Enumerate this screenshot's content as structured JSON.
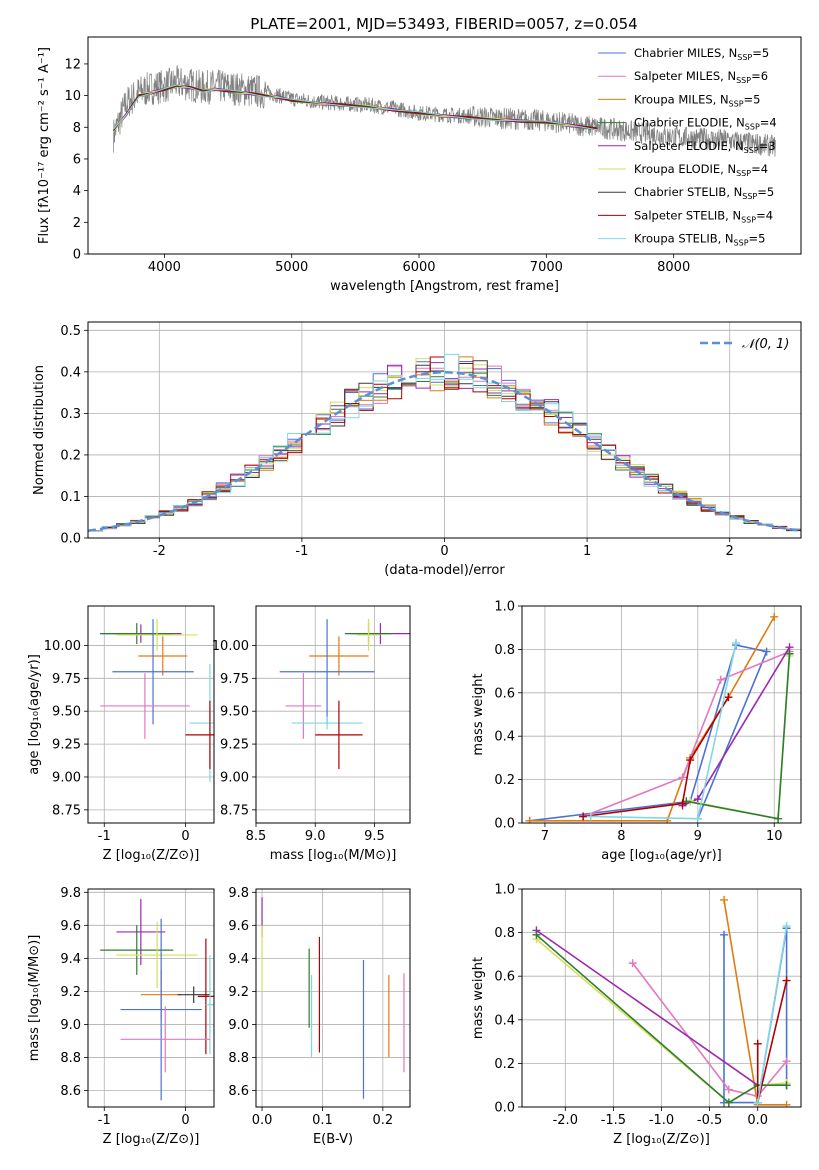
{
  "figure_title": "PLATE=2001, MJD=53493, FIBERID=0057, z=0.054",
  "legend_fit": [
    {
      "label": "Chabrier MILES, N",
      "sub": "SSP",
      "suffix": "=5",
      "color": "#4c72d6"
    },
    {
      "label": "Salpeter MILES, N",
      "sub": "SSP",
      "suffix": "=6",
      "color": "#e377c2"
    },
    {
      "label": "Kroupa MILES, N",
      "sub": "SSP",
      "suffix": "=5",
      "color": "#e07b10"
    },
    {
      "label": "Chabrier ELODIE, N",
      "sub": "SSP",
      "suffix": "=4",
      "color": "#2e7d32"
    },
    {
      "label": "Salpeter ELODIE, N",
      "sub": "SSP",
      "suffix": "=3",
      "color": "#9c27b0"
    },
    {
      "label": "Kroupa ELODIE, N",
      "sub": "SSP",
      "suffix": "=4",
      "color": "#d4e157"
    },
    {
      "label": "Chabrier STELIB, N",
      "sub": "SSP",
      "suffix": "=5",
      "color": "#3a3a3a"
    },
    {
      "label": "Salpeter STELIB, N",
      "sub": "SSP",
      "suffix": "=4",
      "color": "#b00000"
    },
    {
      "label": "Kroupa STELIB, N",
      "sub": "SSP",
      "suffix": "=5",
      "color": "#7fd8e6"
    }
  ],
  "chart_data": [
    {
      "id": "spectrum",
      "type": "line",
      "xlabel": "wavelength [Angstrom, rest frame]",
      "ylabel": "Flux [fλ10⁻¹⁷ erg cm⁻² s⁻¹ A⁻¹]",
      "xlim": [
        3400,
        9000
      ],
      "ylim": [
        0,
        13.7
      ],
      "xticks": [
        4000,
        5000,
        6000,
        7000,
        8000
      ],
      "yticks": [
        0,
        2,
        4,
        6,
        8,
        10,
        12
      ],
      "data_series": {
        "name": "data",
        "color": "#808080",
        "x": [
          3600,
          3700,
          3800,
          3900,
          4000,
          4100,
          4200,
          4300,
          4400,
          4500,
          4600,
          4700,
          4800,
          4900,
          5000,
          5200,
          5400,
          5600,
          5800,
          6000,
          6200,
          6400,
          6600,
          6800,
          7000,
          7200,
          7400,
          7600,
          7800,
          8000,
          8200,
          8400,
          8600,
          8800
        ],
        "y": [
          7.5,
          9.5,
          10.2,
          10.5,
          10.6,
          10.8,
          10.7,
          10.5,
          10.6,
          10.5,
          10.4,
          10.3,
          10.2,
          10.0,
          9.8,
          9.6,
          9.5,
          9.4,
          9.2,
          8.9,
          8.8,
          8.7,
          8.6,
          8.5,
          8.4,
          8.2,
          8.0,
          7.8,
          7.6,
          7.4,
          7.3,
          7.2,
          7.0,
          6.8
        ]
      },
      "model": {
        "x": [
          3600,
          3700,
          3800,
          3900,
          4000,
          4100,
          4200,
          4300,
          4400,
          4500,
          4600,
          4700,
          4800,
          4900,
          5000,
          5200,
          5400,
          5600,
          5800,
          6000,
          6200,
          6400,
          6600,
          6800,
          7000,
          7200,
          7400
        ],
        "y": [
          7.8,
          8.8,
          10.0,
          10.2,
          10.4,
          10.6,
          10.5,
          10.3,
          10.4,
          10.3,
          10.2,
          10.1,
          10.0,
          9.9,
          9.7,
          9.5,
          9.4,
          9.3,
          9.1,
          8.9,
          8.7,
          8.6,
          8.5,
          8.4,
          8.3,
          8.1,
          7.9
        ]
      }
    },
    {
      "id": "residuals",
      "type": "line",
      "xlabel": "(data-model)/error",
      "ylabel": "Normed distribution",
      "legend": "𝒩(0, 1)",
      "xlim": [
        -2.5,
        2.5
      ],
      "ylim": [
        0,
        0.52
      ],
      "xticks": [
        -2,
        -1,
        0,
        1,
        2
      ],
      "yticks": [
        0.0,
        0.1,
        0.2,
        0.3,
        0.4,
        0.5
      ],
      "gaussian": {
        "mu": 0,
        "sigma": 1,
        "color": "#5b8fd6"
      }
    },
    {
      "id": "age_vs_z",
      "type": "scatter",
      "xlabel": "Z [log₁₀(Z/Z⊙)]",
      "ylabel": "age  [log₁₀(age/yr)]",
      "xlim": [
        -1.2,
        0.35
      ],
      "ylim": [
        8.65,
        10.3
      ],
      "xticks": [
        -1,
        0
      ],
      "yticks": [
        8.75,
        9.0,
        9.25,
        9.5,
        9.75,
        10.0
      ],
      "points": [
        {
          "x": -0.55,
          "y": 10.09,
          "xerr": 0.5,
          "yerr": 0.07,
          "color": "#9c27b0"
        },
        {
          "x": -0.6,
          "y": 10.09,
          "xerr": 0.45,
          "yerr": 0.08,
          "color": "#2e7d32"
        },
        {
          "x": -0.35,
          "y": 10.08,
          "xerr": 0.5,
          "yerr": 0.12,
          "color": "#d4e157"
        },
        {
          "x": -0.28,
          "y": 9.92,
          "xerr": 0.3,
          "yerr": 0.15,
          "color": "#e07b10"
        },
        {
          "x": -0.4,
          "y": 9.8,
          "xerr": 0.5,
          "yerr": 0.4,
          "color": "#4c72d6"
        },
        {
          "x": -0.5,
          "y": 9.54,
          "xerr": 0.55,
          "yerr": 0.25,
          "color": "#e377c2"
        },
        {
          "x": 0.3,
          "y": 9.41,
          "xerr": 0.25,
          "yerr": 0.45,
          "color": "#7fd8e6"
        },
        {
          "x": 0.3,
          "y": 9.32,
          "xerr": 0.3,
          "yerr": 0.26,
          "color": "#b00000"
        }
      ]
    },
    {
      "id": "age_vs_mass",
      "type": "scatter",
      "xlabel": "mass [log₁₀(M/M⊙)]",
      "ylabel": "",
      "xlim": [
        8.5,
        9.8
      ],
      "ylim": [
        8.65,
        10.3
      ],
      "xticks": [
        8.5,
        9.0,
        9.5
      ],
      "yticks": [
        8.75,
        9.0,
        9.25,
        9.5,
        9.75,
        10.0
      ],
      "points": [
        {
          "x": 9.55,
          "y": 10.09,
          "xerr": 0.25,
          "yerr": 0.08,
          "color": "#9c27b0"
        },
        {
          "x": 9.45,
          "y": 10.09,
          "xerr": 0.2,
          "yerr": 0.08,
          "color": "#2e7d32"
        },
        {
          "x": 9.45,
          "y": 10.08,
          "xerr": 0.1,
          "yerr": 0.12,
          "color": "#d4e157"
        },
        {
          "x": 9.2,
          "y": 9.92,
          "xerr": 0.25,
          "yerr": 0.15,
          "color": "#e07b10"
        },
        {
          "x": 9.1,
          "y": 9.8,
          "xerr": 0.4,
          "yerr": 0.4,
          "color": "#4c72d6"
        },
        {
          "x": 8.9,
          "y": 9.54,
          "xerr": 0.15,
          "yerr": 0.25,
          "color": "#e377c2"
        },
        {
          "x": 9.1,
          "y": 9.41,
          "xerr": 0.3,
          "yerr": 0.05,
          "color": "#7fd8e6"
        },
        {
          "x": 9.2,
          "y": 9.32,
          "xerr": 0.2,
          "yerr": 0.26,
          "color": "#b00000"
        }
      ]
    },
    {
      "id": "mw_vs_age",
      "type": "line",
      "xlabel": "age  [log₁₀(age/yr)]",
      "ylabel": "mass weight",
      "xlim": [
        6.7,
        10.35
      ],
      "ylim": [
        0,
        1.0
      ],
      "xticks": [
        7,
        8,
        9,
        10
      ],
      "yticks": [
        0.0,
        0.2,
        0.4,
        0.6,
        0.8,
        1.0
      ],
      "series": [
        {
          "color": "#4c72d6",
          "x": [
            6.8,
            8.9,
            9.5,
            9.9,
            9.0
          ],
          "y": [
            0.01,
            0.1,
            0.82,
            0.79,
            0.02
          ]
        },
        {
          "color": "#e07b10",
          "x": [
            6.8,
            8.6,
            8.9,
            9.4,
            10.0
          ],
          "y": [
            0.01,
            0.01,
            0.3,
            0.58,
            0.95
          ]
        },
        {
          "color": "#e377c2",
          "x": [
            7.5,
            8.8,
            9.3,
            10.2
          ],
          "y": [
            0.03,
            0.21,
            0.66,
            0.79
          ]
        },
        {
          "color": "#9c27b0",
          "x": [
            8.8,
            9.0,
            10.2
          ],
          "y": [
            0.08,
            0.11,
            0.81
          ]
        },
        {
          "color": "#d4e157",
          "x": [
            8.9,
            10.05,
            10.2
          ],
          "y": [
            0.1,
            0.02,
            0.77
          ]
        },
        {
          "color": "#2e7d32",
          "x": [
            8.85,
            10.05,
            10.2
          ],
          "y": [
            0.1,
            0.02,
            0.78
          ]
        },
        {
          "color": "#b00000",
          "x": [
            7.5,
            8.8,
            8.9,
            9.4
          ],
          "y": [
            0.03,
            0.09,
            0.29,
            0.58
          ]
        },
        {
          "color": "#7fd8e6",
          "x": [
            7.6,
            9.0,
            9.5
          ],
          "y": [
            0.03,
            0.02,
            0.83
          ]
        }
      ]
    },
    {
      "id": "mass_vs_z",
      "type": "scatter",
      "xlabel": "Z [log₁₀(Z/Z⊙)]",
      "ylabel": "mass [log₁₀(M/M⊙)]",
      "xlim": [
        -1.2,
        0.35
      ],
      "ylim": [
        8.5,
        9.82
      ],
      "xticks": [
        -1,
        0
      ],
      "yticks": [
        8.6,
        8.8,
        9.0,
        9.2,
        9.4,
        9.6,
        9.8
      ],
      "points": [
        {
          "x": -0.55,
          "y": 9.56,
          "xerr": 0.3,
          "yerr": 0.2,
          "color": "#9c27b0"
        },
        {
          "x": -0.6,
          "y": 9.45,
          "xerr": 0.45,
          "yerr": 0.15,
          "color": "#2e7d32"
        },
        {
          "x": -0.35,
          "y": 9.42,
          "xerr": 0.5,
          "yerr": 0.2,
          "color": "#d4e157"
        },
        {
          "x": -0.3,
          "y": 9.18,
          "xerr": 0.25,
          "yerr": 0.15,
          "color": "#e07b10"
        },
        {
          "x": 0.1,
          "y": 9.18,
          "xerr": 0.2,
          "yerr": 0.05,
          "color": "#3a3a3a"
        },
        {
          "x": 0.25,
          "y": 9.17,
          "xerr": 0.1,
          "yerr": 0.35,
          "color": "#b00000"
        },
        {
          "x": 0.3,
          "y": 9.12,
          "xerr": 0.05,
          "yerr": 0.3,
          "color": "#7fd8e6"
        },
        {
          "x": -0.3,
          "y": 9.09,
          "xerr": 0.5,
          "yerr": 0.55,
          "color": "#4c72d6"
        },
        {
          "x": -0.25,
          "y": 8.91,
          "xerr": 0.55,
          "yerr": 0.2,
          "color": "#e377c2"
        }
      ]
    },
    {
      "id": "mass_vs_ebv",
      "type": "scatter",
      "xlabel": "E(B-V)",
      "ylabel": "",
      "xlim": [
        -0.01,
        0.245
      ],
      "ylim": [
        8.5,
        9.82
      ],
      "xticks": [
        0.0,
        0.1,
        0.2
      ],
      "yticks": [
        8.6,
        8.8,
        9.0,
        9.2,
        9.4,
        9.6,
        9.8
      ],
      "points": [
        {
          "x": 0.0,
          "y": 9.65,
          "yerr": 0.12,
          "color": "#9c27b0"
        },
        {
          "x": 0.0,
          "y": 9.4,
          "yerr": 0.2,
          "color": "#d4e157"
        },
        {
          "x": 0.078,
          "y": 9.22,
          "yerr": 0.24,
          "color": "#2e7d32"
        },
        {
          "x": 0.082,
          "y": 9.05,
          "yerr": 0.25,
          "color": "#7fd8e6"
        },
        {
          "x": 0.095,
          "y": 9.18,
          "yerr": 0.35,
          "color": "#b00000"
        },
        {
          "x": 0.168,
          "y": 8.97,
          "yerr": 0.42,
          "color": "#4c72d6"
        },
        {
          "x": 0.21,
          "y": 9.05,
          "yerr": 0.25,
          "color": "#e07b10"
        },
        {
          "x": 0.235,
          "y": 9.01,
          "yerr": 0.3,
          "color": "#e377c2"
        }
      ]
    },
    {
      "id": "mw_vs_z",
      "type": "line",
      "xlabel": "Z [log₁₀(Z/Z⊙)]",
      "ylabel": "mass weight",
      "xlim": [
        -2.45,
        0.45
      ],
      "ylim": [
        0,
        1.0
      ],
      "xticks": [
        -2.0,
        -1.5,
        -1.0,
        -0.5,
        0.0
      ],
      "yticks": [
        0.0,
        0.2,
        0.4,
        0.6,
        0.8,
        1.0
      ],
      "series": [
        {
          "color": "#4c72d6",
          "x": [
            -0.35,
            -0.35,
            0.0,
            0.3,
            0.3
          ],
          "y": [
            0.79,
            0.02,
            0.02,
            0.82,
            0.1
          ]
        },
        {
          "color": "#e07b10",
          "x": [
            -0.35,
            0.0,
            0.3
          ],
          "y": [
            0.95,
            0.01,
            0.01
          ]
        },
        {
          "color": "#e377c2",
          "x": [
            -1.3,
            -0.3,
            0.0,
            0.3
          ],
          "y": [
            0.66,
            0.08,
            0.05,
            0.21
          ]
        },
        {
          "color": "#9c27b0",
          "x": [
            -2.3,
            0.0,
            0.3
          ],
          "y": [
            0.81,
            0.1,
            0.1
          ]
        },
        {
          "color": "#d4e157",
          "x": [
            -2.3,
            -0.3,
            0.0,
            0.3
          ],
          "y": [
            0.77,
            0.02,
            0.1,
            0.11
          ]
        },
        {
          "color": "#2e7d32",
          "x": [
            -2.3,
            -0.3,
            0.0,
            0.3
          ],
          "y": [
            0.79,
            0.02,
            0.1,
            0.1
          ]
        },
        {
          "color": "#b00000",
          "x": [
            0.0,
            0.0,
            0.3
          ],
          "y": [
            0.29,
            0.02,
            0.58
          ]
        },
        {
          "color": "#7fd8e6",
          "x": [
            0.0,
            0.3
          ],
          "y": [
            0.02,
            0.83
          ]
        }
      ]
    }
  ]
}
